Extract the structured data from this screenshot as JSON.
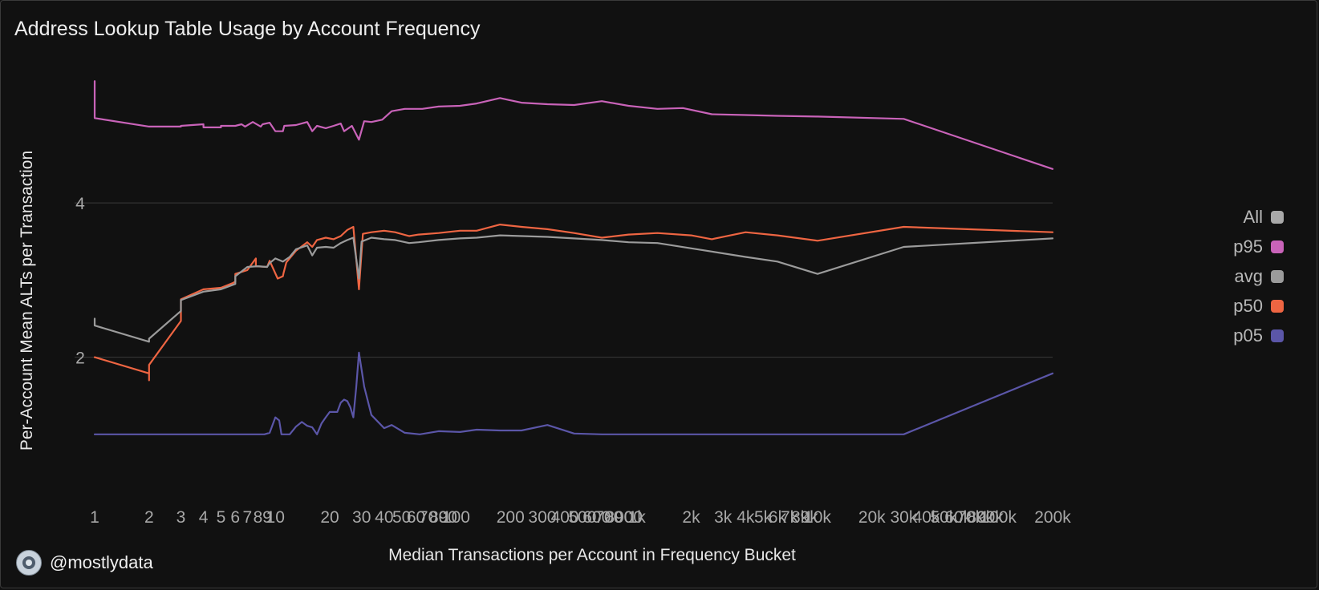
{
  "title": "Address Lookup Table Usage by Account Frequency",
  "handle": "@mostlydata",
  "chart_data": {
    "type": "line",
    "title": "Address Lookup Table Usage by Account Frequency",
    "xlabel": "Median Transactions per Account in Frequency Bucket",
    "ylabel": "Per-Account Mean ALTs per Transaction",
    "x_scale": "log",
    "xlim": [
      1,
      200000
    ],
    "ylim": [
      0,
      5.8
    ],
    "grid": "horizontal",
    "legend_position": "right",
    "yticks": [
      {
        "value": 2,
        "label": "2"
      },
      {
        "value": 4,
        "label": "4"
      }
    ],
    "xticks": [
      {
        "value": 1,
        "label": "1"
      },
      {
        "value": 2,
        "label": "2"
      },
      {
        "value": 3,
        "label": "3"
      },
      {
        "value": 4,
        "label": "4"
      },
      {
        "value": 5,
        "label": "5"
      },
      {
        "value": 6,
        "label": "6"
      },
      {
        "value": 7,
        "label": "7"
      },
      {
        "value": 8,
        "label": "8"
      },
      {
        "value": 9,
        "label": "9"
      },
      {
        "value": 10,
        "label": "10"
      },
      {
        "value": 20,
        "label": "20"
      },
      {
        "value": 30,
        "label": "30"
      },
      {
        "value": 40,
        "label": "40"
      },
      {
        "value": 50,
        "label": "50"
      },
      {
        "value": 60,
        "label": "60"
      },
      {
        "value": 70,
        "label": "70"
      },
      {
        "value": 80,
        "label": "80"
      },
      {
        "value": 90,
        "label": "90"
      },
      {
        "value": 100,
        "label": "100"
      },
      {
        "value": 200,
        "label": "200"
      },
      {
        "value": 300,
        "label": "300"
      },
      {
        "value": 400,
        "label": "400"
      },
      {
        "value": 500,
        "label": "500"
      },
      {
        "value": 600,
        "label": "600"
      },
      {
        "value": 700,
        "label": "700"
      },
      {
        "value": 800,
        "label": "800"
      },
      {
        "value": 900,
        "label": "900"
      },
      {
        "value": 1000,
        "label": "1k"
      },
      {
        "value": 2000,
        "label": "2k"
      },
      {
        "value": 3000,
        "label": "3k"
      },
      {
        "value": 4000,
        "label": "4k"
      },
      {
        "value": 5000,
        "label": "5k"
      },
      {
        "value": 6000,
        "label": "6k"
      },
      {
        "value": 7000,
        "label": "7k"
      },
      {
        "value": 8000,
        "label": "8k"
      },
      {
        "value": 9000,
        "label": "9k"
      },
      {
        "value": 10000,
        "label": "10k"
      },
      {
        "value": 20000,
        "label": "20k"
      },
      {
        "value": 30000,
        "label": "30k"
      },
      {
        "value": 40000,
        "label": "40k"
      },
      {
        "value": 50000,
        "label": "50k"
      },
      {
        "value": 60000,
        "label": "60k"
      },
      {
        "value": 70000,
        "label": "70k"
      },
      {
        "value": 80000,
        "label": "80k"
      },
      {
        "value": 90000,
        "label": "90k"
      },
      {
        "value": 100000,
        "label": "100k"
      },
      {
        "value": 200000,
        "label": "200k"
      }
    ],
    "legend": [
      {
        "name": "All",
        "color": "#a9a9a9"
      },
      {
        "name": "p95",
        "color": "#c963b9"
      },
      {
        "name": "avg",
        "color": "#9b9b9b"
      },
      {
        "name": "p50",
        "color": "#ee6542"
      },
      {
        "name": "p05",
        "color": "#5b56a8"
      }
    ],
    "series": [
      {
        "name": "p95",
        "color": "#c963b9",
        "points": [
          [
            1,
            5.58
          ],
          [
            1,
            5.1
          ],
          [
            2,
            4.99
          ],
          [
            3,
            4.99
          ],
          [
            3,
            5.0
          ],
          [
            4,
            5.02
          ],
          [
            4,
            4.98
          ],
          [
            5,
            4.98
          ],
          [
            5,
            5.0
          ],
          [
            6,
            5.0
          ],
          [
            6.5,
            5.02
          ],
          [
            6.8,
            4.99
          ],
          [
            7.5,
            5.05
          ],
          [
            8.3,
            4.99
          ],
          [
            8.5,
            5.02
          ],
          [
            9.3,
            5.04
          ],
          [
            10,
            4.93
          ],
          [
            11,
            4.93
          ],
          [
            11.2,
            5.0
          ],
          [
            13,
            5.01
          ],
          [
            15,
            5.05
          ],
          [
            16,
            4.93
          ],
          [
            17,
            5.0
          ],
          [
            19,
            4.97
          ],
          [
            21,
            5.0
          ],
          [
            23,
            5.03
          ],
          [
            24,
            4.93
          ],
          [
            26.5,
            5.0
          ],
          [
            29,
            4.82
          ],
          [
            31,
            5.06
          ],
          [
            34,
            5.05
          ],
          [
            39,
            5.08
          ],
          [
            44,
            5.19
          ],
          [
            52,
            5.22
          ],
          [
            65,
            5.22
          ],
          [
            80,
            5.25
          ],
          [
            105,
            5.26
          ],
          [
            130,
            5.29
          ],
          [
            175,
            5.36
          ],
          [
            230,
            5.3
          ],
          [
            320,
            5.28
          ],
          [
            450,
            5.27
          ],
          [
            640,
            5.32
          ],
          [
            900,
            5.26
          ],
          [
            1300,
            5.22
          ],
          [
            1800,
            5.23
          ],
          [
            2600,
            5.15
          ],
          [
            4000,
            5.14
          ],
          [
            6000,
            5.13
          ],
          [
            10000,
            5.12
          ],
          [
            30000,
            5.09
          ],
          [
            200000,
            4.44
          ]
        ]
      },
      {
        "name": "p50",
        "color": "#ee6542",
        "points": [
          [
            1,
            2.0
          ],
          [
            2,
            1.79
          ],
          [
            2,
            1.7
          ],
          [
            2,
            1.9
          ],
          [
            3,
            2.47
          ],
          [
            3,
            2.75
          ],
          [
            4,
            2.88
          ],
          [
            5,
            2.9
          ],
          [
            5.8,
            2.96
          ],
          [
            6,
            2.98
          ],
          [
            6,
            3.08
          ],
          [
            7,
            3.13
          ],
          [
            7.8,
            3.28
          ],
          [
            7.8,
            3.18
          ],
          [
            9,
            3.17
          ],
          [
            9.3,
            3.25
          ],
          [
            10.3,
            3.02
          ],
          [
            11,
            3.05
          ],
          [
            11.1,
            3.09
          ],
          [
            11.5,
            3.23
          ],
          [
            13,
            3.38
          ],
          [
            15,
            3.49
          ],
          [
            16,
            3.43
          ],
          [
            17,
            3.52
          ],
          [
            19,
            3.55
          ],
          [
            21,
            3.53
          ],
          [
            23,
            3.57
          ],
          [
            25,
            3.65
          ],
          [
            27,
            3.69
          ],
          [
            29,
            2.88
          ],
          [
            30.5,
            3.6
          ],
          [
            34,
            3.62
          ],
          [
            40,
            3.64
          ],
          [
            46,
            3.62
          ],
          [
            55,
            3.57
          ],
          [
            62,
            3.59
          ],
          [
            80,
            3.61
          ],
          [
            105,
            3.64
          ],
          [
            130,
            3.64
          ],
          [
            175,
            3.72
          ],
          [
            230,
            3.69
          ],
          [
            320,
            3.66
          ],
          [
            450,
            3.61
          ],
          [
            640,
            3.55
          ],
          [
            900,
            3.59
          ],
          [
            1300,
            3.61
          ],
          [
            2000,
            3.58
          ],
          [
            2600,
            3.53
          ],
          [
            4000,
            3.62
          ],
          [
            6000,
            3.58
          ],
          [
            10000,
            3.51
          ],
          [
            30000,
            3.69
          ],
          [
            200000,
            3.62
          ]
        ]
      },
      {
        "name": "avg",
        "color": "#9b9b9b",
        "points": [
          [
            1,
            2.5
          ],
          [
            1,
            2.41
          ],
          [
            2,
            2.2
          ],
          [
            2,
            2.24
          ],
          [
            3,
            2.6
          ],
          [
            3,
            2.74
          ],
          [
            4,
            2.85
          ],
          [
            5,
            2.88
          ],
          [
            6,
            2.95
          ],
          [
            6,
            3.05
          ],
          [
            7,
            3.17
          ],
          [
            8,
            3.18
          ],
          [
            9,
            3.17
          ],
          [
            9.3,
            3.22
          ],
          [
            10,
            3.28
          ],
          [
            11,
            3.24
          ],
          [
            12,
            3.3
          ],
          [
            13,
            3.4
          ],
          [
            15,
            3.45
          ],
          [
            16,
            3.32
          ],
          [
            17,
            3.42
          ],
          [
            19,
            3.43
          ],
          [
            21,
            3.42
          ],
          [
            23,
            3.48
          ],
          [
            25,
            3.52
          ],
          [
            27,
            3.55
          ],
          [
            29,
            3.02
          ],
          [
            30,
            3.5
          ],
          [
            34,
            3.55
          ],
          [
            40,
            3.53
          ],
          [
            46,
            3.52
          ],
          [
            55,
            3.48
          ],
          [
            62,
            3.49
          ],
          [
            80,
            3.52
          ],
          [
            105,
            3.54
          ],
          [
            130,
            3.55
          ],
          [
            175,
            3.58
          ],
          [
            320,
            3.56
          ],
          [
            640,
            3.52
          ],
          [
            900,
            3.49
          ],
          [
            1300,
            3.48
          ],
          [
            2600,
            3.37
          ],
          [
            4000,
            3.3
          ],
          [
            6000,
            3.24
          ],
          [
            10000,
            3.08
          ],
          [
            30000,
            3.43
          ],
          [
            200000,
            3.54
          ]
        ]
      },
      {
        "name": "p05",
        "color": "#5b56a8",
        "points": [
          [
            1,
            1.0
          ],
          [
            2,
            1.0
          ],
          [
            3,
            1.0
          ],
          [
            4,
            1.0
          ],
          [
            5,
            1.0
          ],
          [
            6,
            1.0
          ],
          [
            7,
            1.0
          ],
          [
            8,
            1.0
          ],
          [
            8.7,
            1.0
          ],
          [
            9.3,
            1.02
          ],
          [
            10,
            1.22
          ],
          [
            10.5,
            1.18
          ],
          [
            10.8,
            1.0
          ],
          [
            11.4,
            1.0
          ],
          [
            12,
            1.0
          ],
          [
            13,
            1.1
          ],
          [
            14,
            1.16
          ],
          [
            15,
            1.11
          ],
          [
            16,
            1.09
          ],
          [
            17,
            1.0
          ],
          [
            18,
            1.14
          ],
          [
            19,
            1.22
          ],
          [
            20,
            1.29
          ],
          [
            22,
            1.29
          ],
          [
            23,
            1.41
          ],
          [
            24,
            1.45
          ],
          [
            25,
            1.43
          ],
          [
            26,
            1.35
          ],
          [
            27,
            1.22
          ],
          [
            28,
            1.61
          ],
          [
            29,
            2.06
          ],
          [
            31,
            1.62
          ],
          [
            34,
            1.25
          ],
          [
            40,
            1.08
          ],
          [
            44,
            1.12
          ],
          [
            52,
            1.02
          ],
          [
            63,
            1.0
          ],
          [
            80,
            1.04
          ],
          [
            105,
            1.03
          ],
          [
            130,
            1.06
          ],
          [
            175,
            1.05
          ],
          [
            230,
            1.05
          ],
          [
            320,
            1.12
          ],
          [
            450,
            1.01
          ],
          [
            640,
            1.0
          ],
          [
            1000,
            1.0
          ],
          [
            10000,
            1.0
          ],
          [
            30000,
            1.0
          ],
          [
            200000,
            1.79
          ]
        ]
      }
    ]
  }
}
